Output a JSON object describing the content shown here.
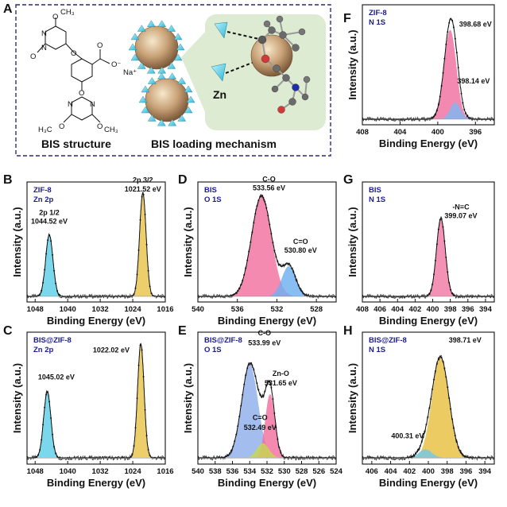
{
  "schematic": {
    "label": "A",
    "structure_caption": "BIS structure",
    "mechanism_caption": "BIS loading mechanism",
    "zn_label": "Zn",
    "na_label": "Na⁺",
    "atoms": {
      "ch3_top": "CH₃",
      "o_top": "O",
      "n1": "N",
      "n2": "N",
      "o_left": "O",
      "o_ester": "O",
      "o_link1": "O",
      "o_minus": "O⁻",
      "o_link2": "O",
      "n3": "N",
      "n4": "N",
      "o_bl": "O",
      "ch3_bl": "H₃C",
      "o_br": "O",
      "ch3_br": "CH₃"
    }
  },
  "common": {
    "xlabel": "Binding Energy (eV)",
    "ylabel": "Intensity (a.u.)"
  },
  "chart_data": [
    {
      "panel": "B",
      "type": "line",
      "sample": "ZIF-8",
      "element": "Zn 2p",
      "xlim": [
        1050,
        1016
      ],
      "xticks": [
        1048,
        1040,
        1032,
        1024,
        1016
      ],
      "series": [
        {
          "name": "2p 1/2",
          "center": 1044.52,
          "height": 0.55,
          "width": 0.9,
          "color": "#5ed0e8"
        },
        {
          "name": "2p 3/2",
          "center": 1021.52,
          "height": 0.93,
          "width": 0.8,
          "color": "#e8c44a"
        }
      ],
      "annotations": [
        {
          "text": "2p 1/2",
          "x": 1044.52,
          "y": 0.73
        },
        {
          "text": "1044.52 eV",
          "x": 1044.52,
          "y": 0.65
        },
        {
          "text": "2p 3/2",
          "x": 1021.52,
          "y": 1.02
        },
        {
          "text": "1021.52 eV",
          "x": 1021.52,
          "y": 0.94
        }
      ]
    },
    {
      "panel": "C",
      "type": "line",
      "sample": "BIS@ZIF-8",
      "element": "Zn 2p",
      "xlim": [
        1050,
        1016
      ],
      "xticks": [
        1048,
        1040,
        1032,
        1024,
        1016
      ],
      "series": [
        {
          "name": "2p 1/2",
          "center": 1045.02,
          "height": 0.54,
          "width": 0.9,
          "color": "#5ed0e8"
        },
        {
          "name": "2p 3/2",
          "center": 1022.02,
          "height": 0.93,
          "width": 0.8,
          "color": "#e8c44a"
        }
      ],
      "annotations": [
        {
          "text": "1045.02 eV",
          "x": 1042.8,
          "y": 0.64
        },
        {
          "text": "1022.02 eV",
          "x": 1029.3,
          "y": 0.86
        }
      ]
    },
    {
      "panel": "D",
      "type": "line",
      "sample": "BIS",
      "element": "O 1S",
      "xlim": [
        540,
        526
      ],
      "xticks": [
        540,
        536,
        532,
        528
      ],
      "series": [
        {
          "name": "C-O",
          "center": 533.56,
          "height": 0.9,
          "width": 1.0,
          "color": "#f2709e"
        },
        {
          "name": "C=O",
          "center": 530.8,
          "height": 0.27,
          "width": 0.7,
          "color": "#6fb0f0"
        }
      ],
      "annotations": [
        {
          "text": "C-O",
          "x": 532.8,
          "y": 1.03
        },
        {
          "text": "533.56 eV",
          "x": 532.8,
          "y": 0.95
        },
        {
          "text": "C=O",
          "x": 529.6,
          "y": 0.47
        },
        {
          "text": "530.80 eV",
          "x": 529.6,
          "y": 0.39
        }
      ]
    },
    {
      "panel": "E",
      "type": "line",
      "sample": "BIS@ZIF-8",
      "element": "O 1S",
      "xlim": [
        540,
        524
      ],
      "xticks": [
        540,
        538,
        536,
        534,
        532,
        530,
        528,
        526,
        524
      ],
      "series": [
        {
          "name": "C-O",
          "center": 533.99,
          "height": 0.76,
          "width": 0.95,
          "color": "#8fb0ea"
        },
        {
          "name": "Zn-O",
          "center": 531.65,
          "height": 0.52,
          "width": 0.55,
          "color": "#f2709e"
        },
        {
          "name": "C=O",
          "center": 532.49,
          "height": 0.12,
          "width": 0.7,
          "color": "#c8d850"
        }
      ],
      "annotations": [
        {
          "text": "C-O",
          "x": 532.3,
          "y": 1.0
        },
        {
          "text": "533.99 eV",
          "x": 532.3,
          "y": 0.92
        },
        {
          "text": "Zn-O",
          "x": 530.4,
          "y": 0.67
        },
        {
          "text": "531.65 eV",
          "x": 530.4,
          "y": 0.59
        },
        {
          "text": "C=O",
          "x": 532.8,
          "y": 0.31
        },
        {
          "text": "532.49 eV",
          "x": 532.8,
          "y": 0.23
        }
      ]
    },
    {
      "panel": "F",
      "type": "line",
      "sample": "ZIF-8",
      "element": "N 1S",
      "xlim": [
        408,
        394
      ],
      "xticks": [
        408,
        404,
        400,
        396
      ],
      "series": [
        {
          "name": "398.68 eV",
          "center": 398.68,
          "height": 0.8,
          "width": 0.65,
          "color": "#f06ea0"
        },
        {
          "name": "398.14 eV",
          "center": 398.14,
          "height": 0.15,
          "width": 0.55,
          "color": "#7fb8f0"
        }
      ],
      "annotations": [
        {
          "text": "398.68 eV",
          "x": 396.0,
          "y": 0.83
        },
        {
          "text": "398.14 eV",
          "x": 396.2,
          "y": 0.32
        }
      ]
    },
    {
      "panel": "G",
      "type": "line",
      "sample": "BIS",
      "element": "N 1S",
      "xlim": [
        408,
        393
      ],
      "xticks": [
        408,
        406,
        404,
        402,
        400,
        398,
        396,
        394
      ],
      "series": [
        {
          "name": "-N=C",
          "center": 399.07,
          "height": 0.7,
          "width": 0.5,
          "color": "#f27aa6"
        }
      ],
      "annotations": [
        {
          "text": "-N=C",
          "x": 396.8,
          "y": 0.78
        },
        {
          "text": "399.07 eV",
          "x": 396.8,
          "y": 0.7
        }
      ]
    },
    {
      "panel": "H",
      "type": "line",
      "sample": "BIS@ZIF-8",
      "element": "N 1S",
      "xlim": [
        407,
        393
      ],
      "xticks": [
        406,
        404,
        402,
        400,
        398,
        396,
        394
      ],
      "series": [
        {
          "name": "398.71 eV",
          "center": 398.71,
          "height": 0.82,
          "width": 0.9,
          "color": "#e8c040"
        },
        {
          "name": "400.31 eV",
          "center": 400.31,
          "height": 0.07,
          "width": 0.7,
          "color": "#70c8e8"
        }
      ],
      "annotations": [
        {
          "text": "398.71 eV",
          "x": 396.1,
          "y": 0.94
        },
        {
          "text": "400.31 eV",
          "x": 402.2,
          "y": 0.16
        }
      ]
    }
  ]
}
